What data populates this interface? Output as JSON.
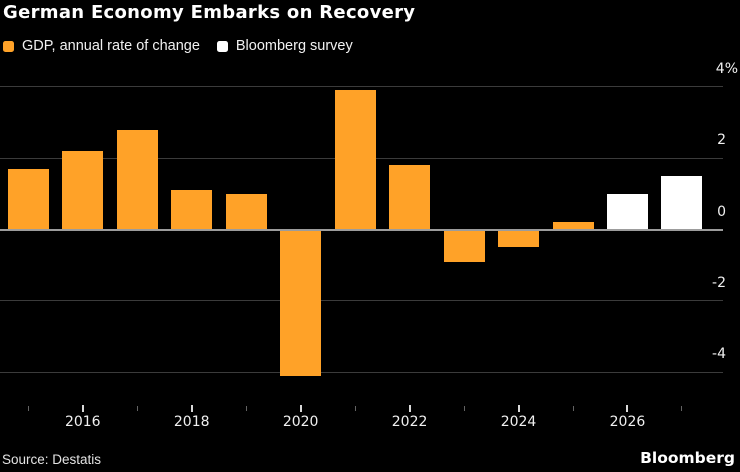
{
  "header": {
    "title": "German Economy Embarks on Recovery"
  },
  "legend": [
    {
      "label": "GDP, annual rate of change",
      "color": "#ffa228"
    },
    {
      "label": "Bloomberg survey",
      "color": "#ffffff"
    }
  ],
  "footer": {
    "source": "Source: Destatis",
    "brand": "Bloomberg"
  },
  "chart_data": {
    "type": "bar",
    "title": "German Economy Embarks on Recovery",
    "categories": [
      "2015",
      "2016",
      "2017",
      "2018",
      "2019",
      "2020",
      "2021",
      "2022",
      "2023",
      "2024",
      "2025",
      "2026",
      "2027"
    ],
    "series": [
      {
        "name": "GDP, annual rate of change",
        "color": "#ffa228",
        "values": [
          1.7,
          2.2,
          2.8,
          1.1,
          1.0,
          -4.1,
          3.9,
          1.8,
          -0.9,
          -0.5,
          0.2,
          null,
          null
        ]
      },
      {
        "name": "Bloomberg survey",
        "color": "#ffffff",
        "values": [
          null,
          null,
          null,
          null,
          null,
          null,
          null,
          null,
          null,
          null,
          null,
          1.0,
          1.5
        ]
      }
    ],
    "xlabel": "",
    "ylabel": "%",
    "ylim": [
      -4.8,
      4.7
    ],
    "yticks": [
      {
        "value": 4,
        "label": "4%"
      },
      {
        "value": 2,
        "label": "2"
      },
      {
        "value": 0,
        "label": "0"
      },
      {
        "value": -2,
        "label": "-2"
      },
      {
        "value": -4,
        "label": "-4"
      }
    ],
    "xtick_labels_shown": [
      "2016",
      "2018",
      "2020",
      "2022",
      "2024",
      "2026"
    ],
    "grid": "horizontal-only",
    "legend_position": "top-left",
    "background": "#000000"
  }
}
